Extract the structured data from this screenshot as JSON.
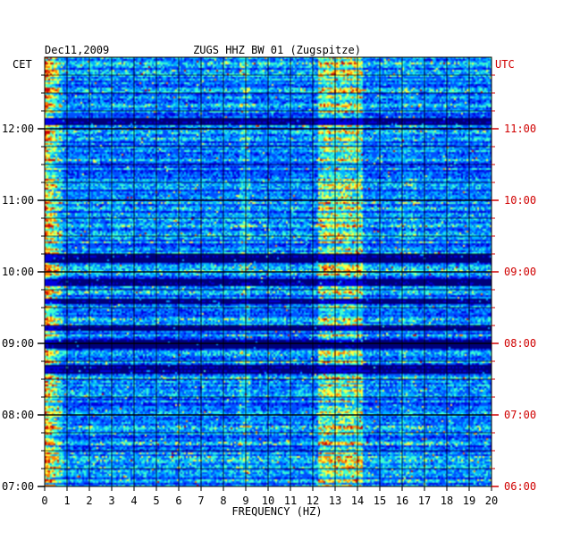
{
  "chart_data": {
    "type": "heatmap",
    "title": "ZUGS HHZ BW 01 (Zugspitze)",
    "date": "Dec11,2009",
    "xlabel": "FREQUENCY (HZ)",
    "left_axis_label": "CET",
    "right_axis_label": "UTC",
    "xlim": [
      0,
      20
    ],
    "x_ticks": [
      "0",
      "1",
      "2",
      "3",
      "4",
      "5",
      "6",
      "7",
      "8",
      "9",
      "10",
      "11",
      "12",
      "13",
      "14",
      "15",
      "16",
      "17",
      "18",
      "19",
      "20"
    ],
    "left_ticks": [
      {
        "label": "07:00",
        "hours_from_bottom": 0
      },
      {
        "label": "08:00",
        "hours_from_bottom": 1
      },
      {
        "label": "09:00",
        "hours_from_bottom": 2
      },
      {
        "label": "10:00",
        "hours_from_bottom": 3
      },
      {
        "label": "11:00",
        "hours_from_bottom": 4
      },
      {
        "label": "12:00",
        "hours_from_bottom": 5
      }
    ],
    "right_ticks": [
      {
        "label": "06:00",
        "hours_from_bottom": 0
      },
      {
        "label": "07:00",
        "hours_from_bottom": 1
      },
      {
        "label": "08:00",
        "hours_from_bottom": 2
      },
      {
        "label": "09:00",
        "hours_from_bottom": 3
      },
      {
        "label": "10:00",
        "hours_from_bottom": 4
      },
      {
        "label": "11:00",
        "hours_from_bottom": 5
      }
    ],
    "time_span_hours": 6,
    "colormap": [
      "#00007a",
      "#0000e0",
      "#0050ff",
      "#00b0ff",
      "#40ffd0",
      "#ffff40",
      "#ff8000",
      "#d00000"
    ],
    "colors": {
      "left_axis": "#000000",
      "right_axis": "#d00000",
      "background": "#00007a"
    },
    "grid": true
  }
}
